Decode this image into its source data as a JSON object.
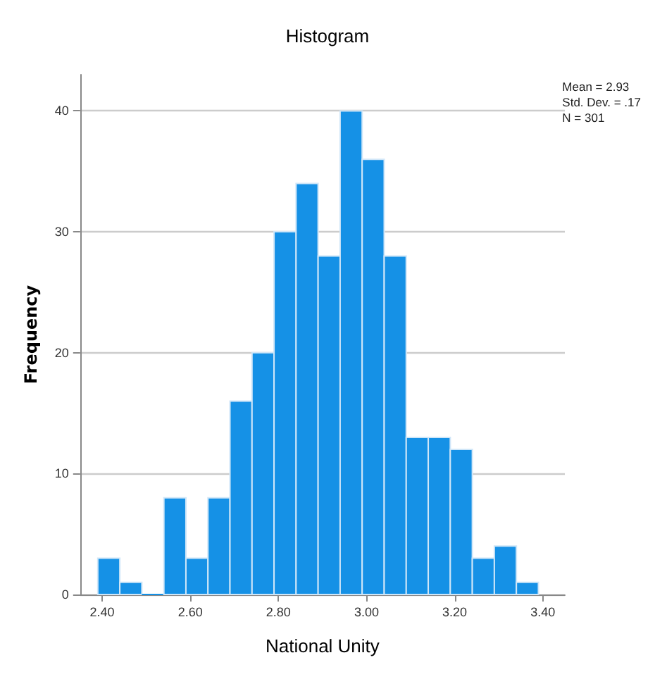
{
  "chart_data": {
    "type": "histogram",
    "title": "Histogram",
    "xlabel": "National Unity",
    "ylabel": "Frequency",
    "bins": [
      2.39,
      2.44,
      2.49,
      2.54,
      2.59,
      2.64,
      2.69,
      2.74,
      2.79,
      2.84,
      2.89,
      2.94,
      2.99,
      3.04,
      3.09,
      3.14,
      3.19,
      3.24,
      3.29,
      3.34,
      3.39
    ],
    "values": [
      3,
      1,
      0,
      8,
      3,
      8,
      16,
      20,
      30,
      34,
      28,
      40,
      36,
      28,
      13,
      13,
      12,
      3,
      4,
      1
    ],
    "color": "#1591e6",
    "xlim": [
      2.35,
      3.45
    ],
    "xticks": [
      {
        "value": 2.4,
        "label": "2.40"
      },
      {
        "value": 2.6,
        "label": "2.60"
      },
      {
        "value": 2.8,
        "label": "2.80"
      },
      {
        "value": 3.0,
        "label": "3.00"
      },
      {
        "value": 3.2,
        "label": "3.20"
      },
      {
        "value": 3.4,
        "label": "3.40"
      }
    ],
    "ylim": [
      0,
      43
    ],
    "yticks": [
      0,
      10,
      20,
      30,
      40
    ],
    "grid": "y",
    "annotations": [
      "Mean = 2.93",
      "Std. Dev. = .17",
      "N = 301"
    ]
  }
}
